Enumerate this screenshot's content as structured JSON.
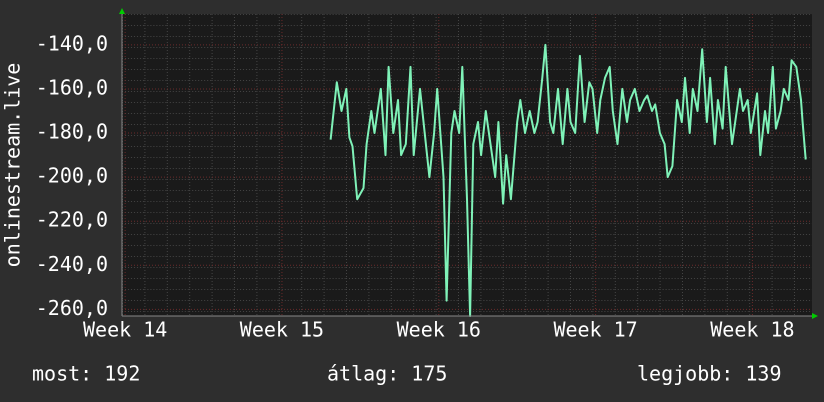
{
  "chart_data": {
    "type": "line",
    "y_label": "onlinestream.live",
    "color": "#7ff2b8",
    "grid": true,
    "x": [
      15.31,
      15.35,
      15.38,
      15.41,
      15.43,
      15.45,
      15.48,
      15.52,
      15.54,
      15.57,
      15.59,
      15.63,
      15.66,
      15.68,
      15.71,
      15.74,
      15.76,
      15.79,
      15.82,
      15.84,
      15.88,
      15.91,
      15.94,
      15.97,
      15.99,
      16.03,
      16.05,
      16.08,
      16.1,
      16.13,
      16.15,
      16.18,
      16.2,
      16.22,
      16.25,
      16.27,
      16.3,
      16.33,
      16.36,
      16.38,
      16.41,
      16.43,
      16.46,
      16.5,
      16.52,
      16.55,
      16.58,
      16.61,
      16.63,
      16.66,
      16.68,
      16.71,
      16.73,
      16.76,
      16.79,
      16.82,
      16.84,
      16.87,
      16.9,
      16.93,
      16.96,
      16.98,
      17.01,
      17.03,
      17.06,
      17.09,
      17.11,
      17.14,
      17.17,
      17.2,
      17.22,
      17.25,
      17.28,
      17.31,
      17.33,
      17.36,
      17.38,
      17.41,
      17.44,
      17.46,
      17.49,
      17.52,
      17.55,
      17.57,
      17.6,
      17.62,
      17.65,
      17.68,
      17.71,
      17.73,
      17.76,
      17.78,
      17.81,
      17.83,
      17.87,
      17.89,
      17.92,
      17.94,
      17.97,
      17.99,
      18.03,
      18.05,
      18.08,
      18.1,
      18.13,
      18.15,
      18.18,
      18.2,
      18.23,
      18.25,
      18.28,
      18.31,
      18.32,
      18.34
    ],
    "values": [
      -183,
      -157,
      -170,
      -160,
      -182,
      -186,
      -210,
      -205,
      -185,
      -170,
      -180,
      -160,
      -190,
      -150,
      -180,
      -165,
      -190,
      -185,
      -150,
      -190,
      -160,
      -180,
      -200,
      -180,
      -160,
      -200,
      -256,
      -180,
      -170,
      -180,
      -150,
      -210,
      -263,
      -185,
      -175,
      -190,
      -170,
      -185,
      -200,
      -175,
      -212,
      -190,
      -210,
      -175,
      -165,
      -180,
      -170,
      -180,
      -175,
      -155,
      -140,
      -175,
      -180,
      -160,
      -185,
      -160,
      -175,
      -180,
      -145,
      -175,
      -157,
      -160,
      -180,
      -165,
      -155,
      -150,
      -170,
      -185,
      -160,
      -175,
      -165,
      -160,
      -170,
      -165,
      -163,
      -170,
      -167,
      -180,
      -185,
      -200,
      -195,
      -165,
      -175,
      -155,
      -180,
      -160,
      -170,
      -142,
      -175,
      -155,
      -185,
      -165,
      -178,
      -150,
      -185,
      -175,
      -160,
      -170,
      -165,
      -180,
      -162,
      -190,
      -170,
      -180,
      -150,
      -178,
      -170,
      -160,
      -165,
      -147,
      -150,
      -165,
      -175,
      -192
    ],
    "xlim": [
      13.98,
      18.38
    ],
    "xticks": [
      {
        "value": 14,
        "label": "Week 14"
      },
      {
        "value": 15,
        "label": "Week 15"
      },
      {
        "value": 16,
        "label": "Week 16"
      },
      {
        "value": 17,
        "label": "Week 17"
      },
      {
        "value": 18,
        "label": "Week 18"
      }
    ],
    "ylim": [
      -263,
      -126
    ],
    "yticks": [
      {
        "value": -140,
        "label": "-140,0"
      },
      {
        "value": -160,
        "label": "-160,0"
      },
      {
        "value": -180,
        "label": "-180,0"
      },
      {
        "value": -200,
        "label": "-200,0"
      },
      {
        "value": -220,
        "label": "-220,0"
      },
      {
        "value": -240,
        "label": "-240,0"
      },
      {
        "value": -260,
        "label": "-260,0"
      }
    ],
    "annotations": [
      "most: 192",
      "átlag: 175",
      "legjobb: 139"
    ]
  }
}
